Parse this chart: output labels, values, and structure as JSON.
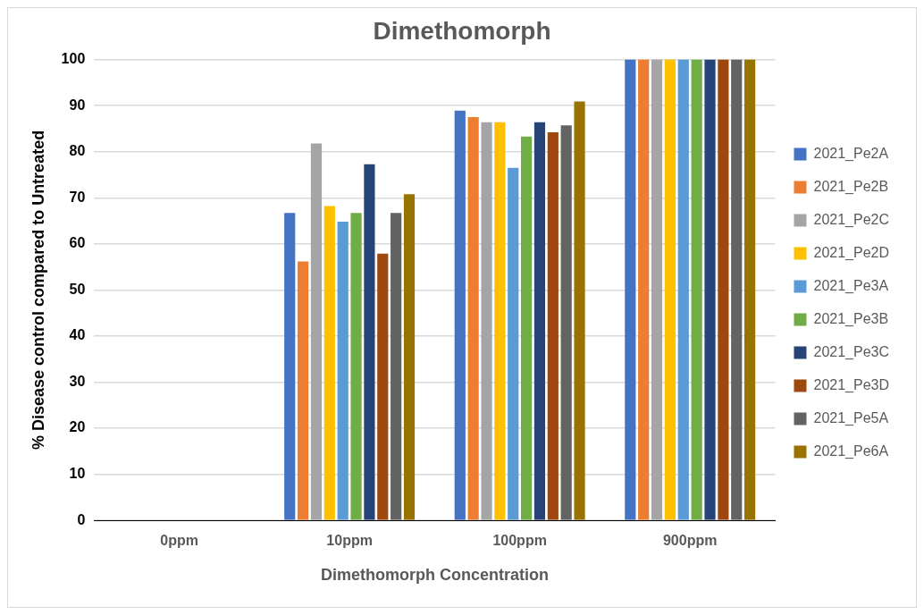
{
  "chart_data": {
    "type": "bar",
    "title": "Dimethomorph",
    "xlabel": "Dimethomorph Concentration",
    "ylabel": "% Disease control compared to Untreated",
    "categories": [
      "0ppm",
      "10ppm",
      "100ppm",
      "900ppm"
    ],
    "series": [
      {
        "name": "2021_Pe2A",
        "color": "#4472c4",
        "values": [
          0,
          66.7,
          88.9,
          100
        ]
      },
      {
        "name": "2021_Pe2B",
        "color": "#ed7d31",
        "values": [
          0,
          56.2,
          87.5,
          100
        ]
      },
      {
        "name": "2021_Pe2C",
        "color": "#a5a5a5",
        "values": [
          0,
          81.8,
          86.4,
          100
        ]
      },
      {
        "name": "2021_Pe2D",
        "color": "#ffc000",
        "values": [
          0,
          68.2,
          86.4,
          100
        ]
      },
      {
        "name": "2021_Pe3A",
        "color": "#5b9bd5",
        "values": [
          0,
          64.8,
          76.5,
          100
        ]
      },
      {
        "name": "2021_Pe3B",
        "color": "#70ad47",
        "values": [
          0,
          66.7,
          83.3,
          100
        ]
      },
      {
        "name": "2021_Pe3C",
        "color": "#264478",
        "values": [
          0,
          77.3,
          86.4,
          100
        ]
      },
      {
        "name": "2021_Pe3D",
        "color": "#9e480e",
        "values": [
          0,
          57.9,
          84.2,
          100
        ]
      },
      {
        "name": "2021_Pe5A",
        "color": "#636363",
        "values": [
          0,
          66.7,
          85.7,
          100
        ]
      },
      {
        "name": "2021_Pe6A",
        "color": "#997300",
        "values": [
          0,
          70.8,
          90.9,
          100
        ]
      }
    ],
    "ylim": [
      0,
      100
    ],
    "yticks": [
      0,
      10,
      20,
      30,
      40,
      50,
      60,
      70,
      80,
      90,
      100
    ],
    "grid": "y",
    "legend": "right"
  }
}
